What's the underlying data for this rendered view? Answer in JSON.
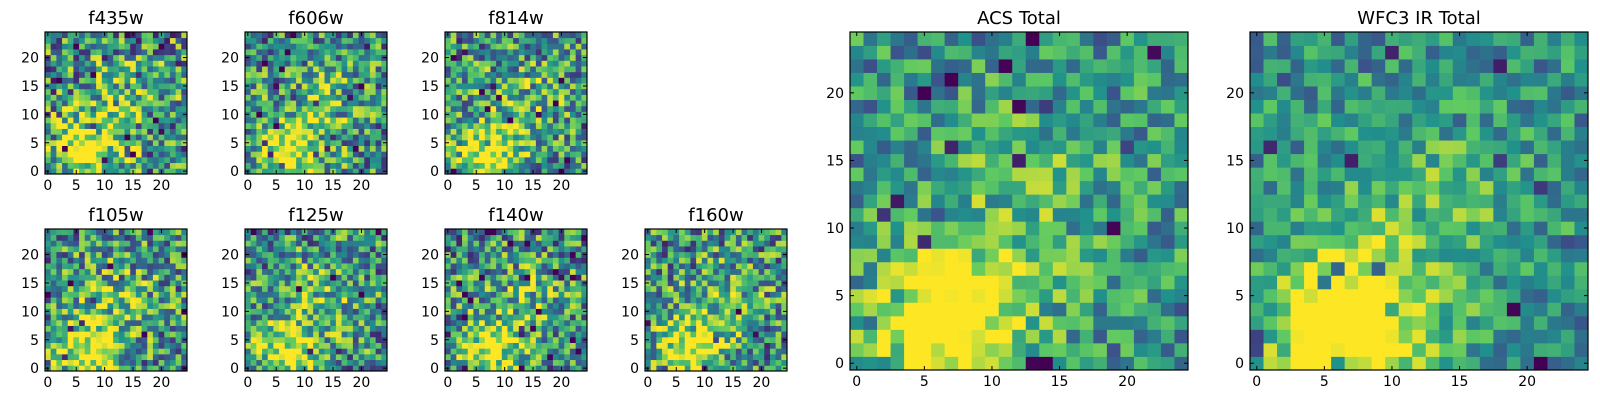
{
  "figure": {
    "colormap": [
      "#440154",
      "#3b528b",
      "#21918c",
      "#5ec962",
      "#fde725"
    ],
    "frame_color": "#000000"
  },
  "chart_data": [
    {
      "type": "heatmap",
      "title": "f435w",
      "grid_size": 25,
      "xlim": [
        0,
        24
      ],
      "ylim": [
        0,
        24
      ],
      "xticks": [
        0,
        5,
        10,
        15,
        20
      ],
      "yticks": [
        0,
        5,
        10,
        15,
        20
      ],
      "bright_spot": [
        7,
        3
      ],
      "blob_strength": 0.35,
      "noise": 0.55,
      "seed": 11
    },
    {
      "type": "heatmap",
      "title": "f606w",
      "grid_size": 25,
      "xlim": [
        0,
        24
      ],
      "ylim": [
        0,
        24
      ],
      "xticks": [
        0,
        5,
        10,
        15,
        20
      ],
      "yticks": [
        0,
        5,
        10,
        15,
        20
      ],
      "bright_spot": [
        7,
        3
      ],
      "blob_strength": 0.4,
      "noise": 0.5,
      "seed": 23
    },
    {
      "type": "heatmap",
      "title": "f814w",
      "grid_size": 25,
      "xlim": [
        0,
        24
      ],
      "ylim": [
        0,
        24
      ],
      "xticks": [
        0,
        5,
        10,
        15,
        20
      ],
      "yticks": [
        0,
        5,
        10,
        15,
        20
      ],
      "bright_spot": [
        7,
        3
      ],
      "blob_strength": 0.4,
      "noise": 0.5,
      "seed": 37
    },
    {
      "type": "heatmap",
      "title": "f105w",
      "grid_size": 25,
      "xlim": [
        0,
        24
      ],
      "ylim": [
        0,
        24
      ],
      "xticks": [
        0,
        5,
        10,
        15,
        20
      ],
      "yticks": [
        0,
        5,
        10,
        15,
        20
      ],
      "bright_spot": [
        7,
        3
      ],
      "blob_strength": 0.4,
      "noise": 0.5,
      "seed": 41
    },
    {
      "type": "heatmap",
      "title": "f125w",
      "grid_size": 25,
      "xlim": [
        0,
        24
      ],
      "ylim": [
        0,
        24
      ],
      "xticks": [
        0,
        5,
        10,
        15,
        20
      ],
      "yticks": [
        0,
        5,
        10,
        15,
        20
      ],
      "bright_spot": [
        7,
        3
      ],
      "blob_strength": 0.35,
      "noise": 0.5,
      "seed": 53
    },
    {
      "type": "heatmap",
      "title": "f140w",
      "grid_size": 25,
      "xlim": [
        0,
        24
      ],
      "ylim": [
        0,
        24
      ],
      "xticks": [
        0,
        5,
        10,
        15,
        20
      ],
      "yticks": [
        0,
        5,
        10,
        15,
        20
      ],
      "bright_spot": [
        7,
        3
      ],
      "blob_strength": 0.35,
      "noise": 0.5,
      "seed": 67
    },
    {
      "type": "heatmap",
      "title": "f160w",
      "grid_size": 25,
      "xlim": [
        0,
        24
      ],
      "ylim": [
        0,
        24
      ],
      "xticks": [
        0,
        5,
        10,
        15,
        20
      ],
      "yticks": [
        0,
        5,
        10,
        15,
        20
      ],
      "bright_spot": [
        7,
        3
      ],
      "blob_strength": 0.4,
      "noise": 0.5,
      "seed": 79
    },
    {
      "type": "heatmap",
      "title": "ACS Total",
      "grid_size": 25,
      "xlim": [
        0,
        24
      ],
      "ylim": [
        0,
        24
      ],
      "xticks": [
        0,
        5,
        10,
        15,
        20
      ],
      "yticks": [
        0,
        5,
        10,
        15,
        20
      ],
      "bright_spot": [
        7,
        3
      ],
      "blob_strength": 0.5,
      "noise": 0.35,
      "seed": 97
    },
    {
      "type": "heatmap",
      "title": "WFC3 IR Total",
      "grid_size": 25,
      "xlim": [
        0,
        24
      ],
      "ylim": [
        0,
        24
      ],
      "xticks": [
        0,
        5,
        10,
        15,
        20
      ],
      "yticks": [
        0,
        5,
        10,
        15,
        20
      ],
      "bright_spot": [
        7,
        3
      ],
      "blob_strength": 0.55,
      "noise": 0.3,
      "seed": 101
    }
  ]
}
